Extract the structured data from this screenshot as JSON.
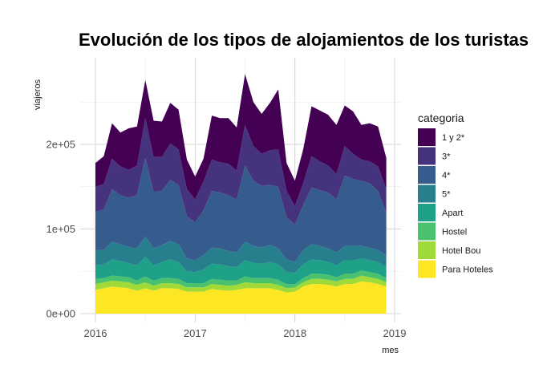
{
  "chart_data": {
    "type": "area",
    "stacked": true,
    "title": "Evolución de los tipos de alojamientos de los turistas",
    "xlabel": "mes",
    "ylabel": "viajeros",
    "legend_title": "categoria",
    "legend_position": "right",
    "grid": true,
    "x_start": "2016-01",
    "x_ticks": [
      "2016",
      "2017",
      "2018",
      "2019"
    ],
    "y_ticks": [
      {
        "value": 0,
        "label": "0e+00"
      },
      {
        "value": 100000,
        "label": "1e+05"
      },
      {
        "value": 200000,
        "label": "2e+05"
      }
    ],
    "ylim": [
      0,
      290000
    ],
    "xlim": [
      "2016-01",
      "2019-01"
    ],
    "series": [
      {
        "name": "Para Hoteles",
        "color": "#FDE725",
        "values": [
          28000,
          30000,
          32000,
          31000,
          30000,
          27000,
          30000,
          27000,
          30000,
          30000,
          29000,
          26000,
          26000,
          26000,
          29000,
          28000,
          27000,
          28000,
          30000,
          30000,
          30000,
          30000,
          28000,
          25000,
          26000,
          32000,
          35000,
          35000,
          34000,
          32000,
          35000,
          35000,
          38000,
          37000,
          35000,
          32000
        ]
      },
      {
        "name": "Hotel Bou",
        "color": "#A0DA39",
        "values": [
          7000,
          7000,
          7000,
          7000,
          7000,
          7000,
          7000,
          6000,
          6000,
          6000,
          6000,
          5000,
          5000,
          5000,
          6000,
          6000,
          6000,
          6000,
          7000,
          6000,
          6000,
          6000,
          6000,
          5000,
          5000,
          5000,
          6000,
          6000,
          6000,
          6000,
          6000,
          6000,
          7000,
          6000,
          6000,
          5000
        ]
      },
      {
        "name": "Hostel",
        "color": "#4AC16D",
        "values": [
          6000,
          5000,
          6000,
          6000,
          6000,
          5000,
          7000,
          6000,
          6000,
          6000,
          6000,
          5000,
          5000,
          5000,
          6000,
          6000,
          6000,
          5000,
          7000,
          6000,
          6000,
          6000,
          6000,
          5000,
          4000,
          5000,
          6000,
          6000,
          6000,
          5000,
          6000,
          6000,
          6000,
          6000,
          6000,
          5000
        ]
      },
      {
        "name": "Apart",
        "color": "#1FA187",
        "values": [
          16000,
          16000,
          19000,
          18000,
          17000,
          18000,
          23000,
          18000,
          19000,
          22000,
          20000,
          14000,
          13000,
          16000,
          18000,
          18000,
          17000,
          16000,
          19000,
          18000,
          17000,
          19000,
          18000,
          14000,
          13000,
          16000,
          17000,
          16000,
          15000,
          14000,
          16000,
          16000,
          14000,
          14000,
          14000,
          13000
        ]
      },
      {
        "name": "5*",
        "color": "#277F8E",
        "values": [
          18000,
          17000,
          21000,
          20000,
          19000,
          20000,
          24000,
          20000,
          20000,
          22000,
          21000,
          15000,
          14000,
          17000,
          19000,
          19000,
          18000,
          17000,
          22000,
          20000,
          19000,
          20000,
          19000,
          15000,
          13000,
          17000,
          18000,
          17000,
          16000,
          15000,
          17000,
          17000,
          15000,
          15000,
          14000,
          14000
        ]
      },
      {
        "name": "4*",
        "color": "#365C8D",
        "values": [
          45000,
          48000,
          62000,
          58000,
          58000,
          63000,
          93000,
          67000,
          64000,
          72000,
          70000,
          50000,
          45000,
          53000,
          67000,
          66000,
          66000,
          63000,
          90000,
          77000,
          73000,
          71000,
          73000,
          50000,
          44000,
          53000,
          67000,
          66000,
          66000,
          63000,
          83000,
          79000,
          77000,
          76000,
          70000,
          50000
        ]
      },
      {
        "name": "3*",
        "color": "#46337E",
        "values": [
          30000,
          30000,
          36000,
          34000,
          33000,
          35000,
          47000,
          41000,
          40000,
          43000,
          42000,
          32000,
          27000,
          34000,
          37000,
          36000,
          37000,
          34000,
          48000,
          41000,
          38000,
          41000,
          44000,
          31000,
          22000,
          26000,
          37000,
          34000,
          32000,
          30000,
          35000,
          30000,
          25000,
          26000,
          29000,
          28000
        ]
      },
      {
        "name": "1 y 2*",
        "color": "#440154",
        "values": [
          28000,
          33000,
          42000,
          40000,
          49000,
          46000,
          45000,
          43000,
          42000,
          48000,
          47000,
          35000,
          27000,
          27000,
          52000,
          52000,
          54000,
          51000,
          60000,
          52000,
          47000,
          56000,
          71000,
          33000,
          30000,
          40000,
          59000,
          60000,
          60000,
          58000,
          48000,
          50000,
          41000,
          45000,
          47000,
          37000
        ]
      }
    ]
  }
}
